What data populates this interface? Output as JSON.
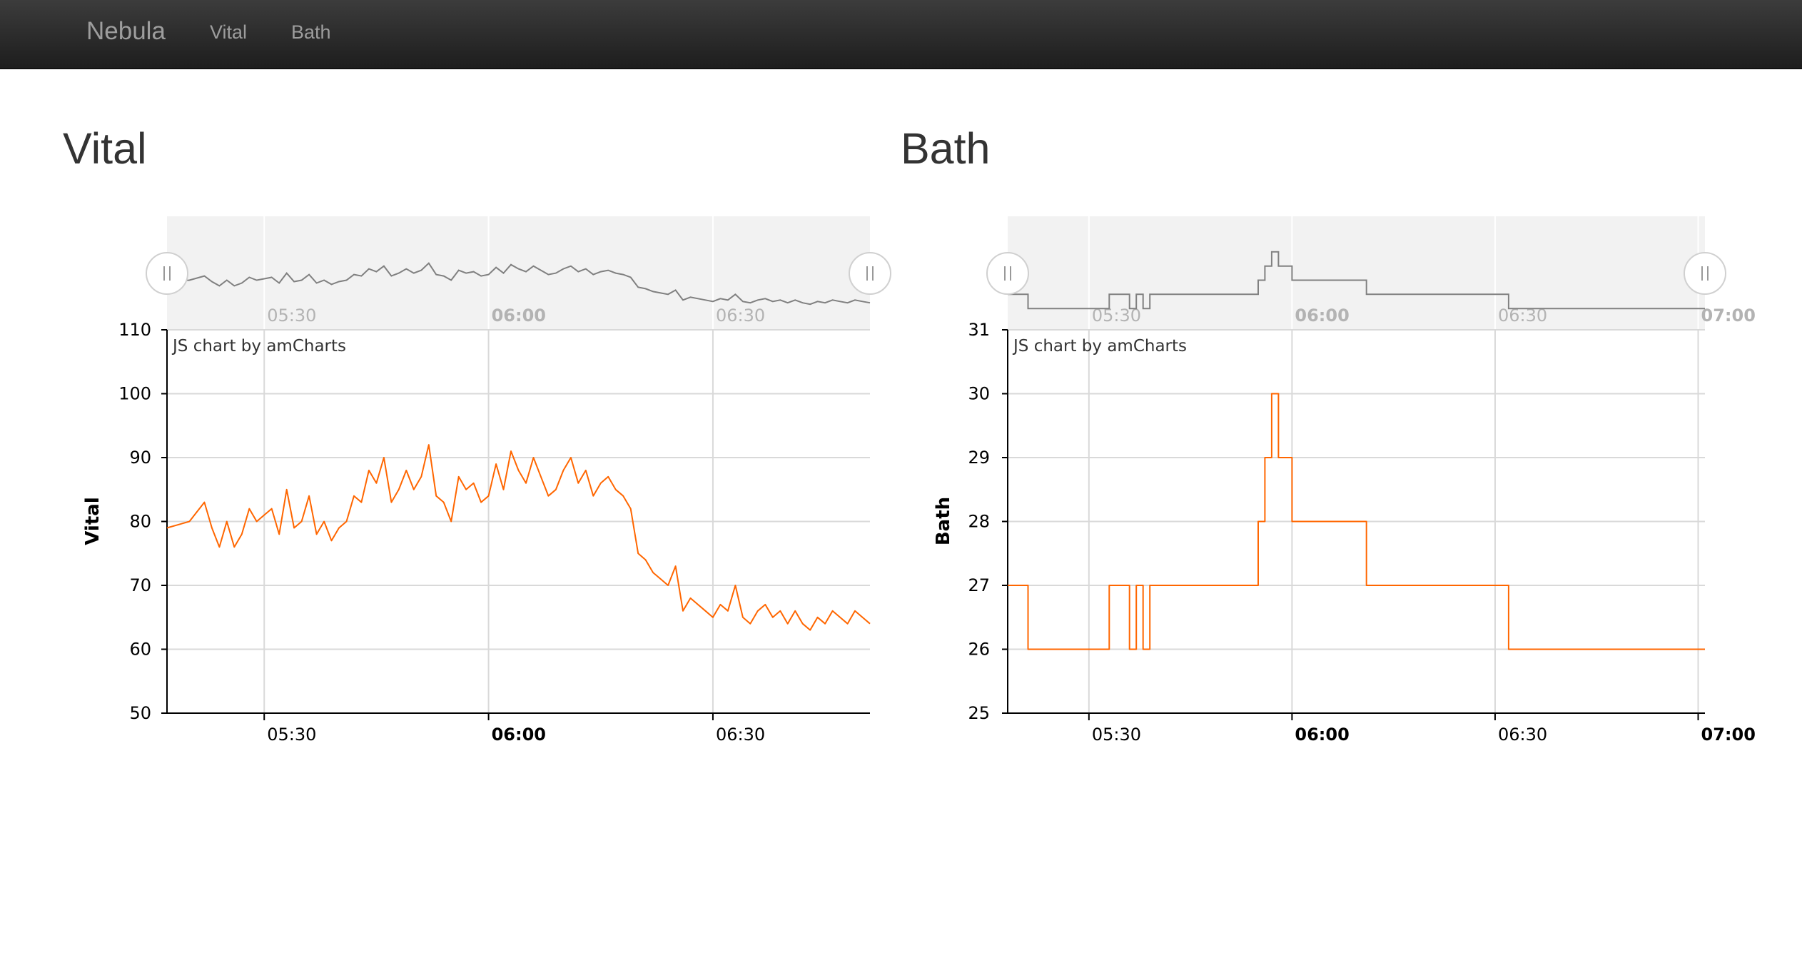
{
  "navbar": {
    "brand": "Nebula",
    "links": [
      "Vital",
      "Bath"
    ]
  },
  "sections": {
    "vital_title": "Vital",
    "bath_title": "Bath"
  },
  "colors": {
    "series": "#ff6600",
    "scrollbar_series": "#808080",
    "scrollbar_bg": "#f2f2f2",
    "grid": "#d9d9d9"
  },
  "chart_data": [
    {
      "type": "line",
      "credit": "JS chart by amCharts",
      "ylabel": "Vital",
      "ylim": [
        50,
        110
      ],
      "yticks": [
        50,
        60,
        70,
        80,
        90,
        100,
        110
      ],
      "xlim": [
        "05:17",
        "06:51"
      ],
      "xticks": [
        {
          "time": "05:30",
          "label": "05:30",
          "bold": false
        },
        {
          "time": "06:00",
          "label": "06:00",
          "bold": true
        },
        {
          "time": "06:30",
          "label": "06:30",
          "bold": false
        }
      ],
      "scrollbar": true,
      "series": [
        {
          "x": [
            "05:17",
            "05:20",
            "05:22",
            "05:23",
            "05:24",
            "05:25",
            "05:26",
            "05:27",
            "05:28",
            "05:29",
            "05:30",
            "05:31",
            "05:32",
            "05:33",
            "05:34",
            "05:35",
            "05:36",
            "05:37",
            "05:38",
            "05:39",
            "05:40",
            "05:41",
            "05:42",
            "05:43",
            "05:44",
            "05:45",
            "05:46",
            "05:47",
            "05:48",
            "05:49",
            "05:50",
            "05:51",
            "05:52",
            "05:53",
            "05:54",
            "05:55",
            "05:56",
            "05:57",
            "05:58",
            "05:59",
            "06:00",
            "06:01",
            "06:02",
            "06:03",
            "06:04",
            "06:05",
            "06:06",
            "06:07",
            "06:08",
            "06:09",
            "06:10",
            "06:11",
            "06:12",
            "06:13",
            "06:14",
            "06:15",
            "06:16",
            "06:17",
            "06:18",
            "06:19",
            "06:20",
            "06:21",
            "06:22",
            "06:23",
            "06:24",
            "06:25",
            "06:26",
            "06:27",
            "06:28",
            "06:29",
            "06:30",
            "06:31",
            "06:32",
            "06:33",
            "06:34",
            "06:35",
            "06:36",
            "06:37",
            "06:38",
            "06:39",
            "06:40",
            "06:41",
            "06:42",
            "06:43",
            "06:44",
            "06:45",
            "06:46",
            "06:47",
            "06:48",
            "06:49",
            "06:50",
            "06:51"
          ],
          "values": [
            79,
            80,
            83,
            79,
            76,
            80,
            76,
            78,
            82,
            80,
            81,
            82,
            78,
            85,
            79,
            80,
            84,
            78,
            80,
            77,
            79,
            80,
            84,
            83,
            88,
            86,
            90,
            83,
            85,
            88,
            85,
            87,
            92,
            84,
            83,
            80,
            87,
            85,
            86,
            83,
            84,
            89,
            85,
            91,
            88,
            86,
            90,
            87,
            84,
            85,
            88,
            90,
            86,
            88,
            84,
            86,
            87,
            85,
            84,
            82,
            75,
            74,
            72,
            71,
            70,
            73,
            66,
            68,
            67,
            66,
            65,
            67,
            66,
            70,
            65,
            64,
            66,
            67,
            65,
            66,
            64,
            66,
            64,
            63,
            65,
            64,
            66,
            65,
            64,
            66,
            65,
            64
          ]
        }
      ]
    },
    {
      "type": "line",
      "credit": "JS chart by amCharts",
      "ylabel": "Bath",
      "ylim": [
        25,
        31
      ],
      "yticks": [
        25,
        26,
        27,
        28,
        29,
        30,
        31
      ],
      "xlim": [
        "05:18",
        "07:01"
      ],
      "xticks": [
        {
          "time": "05:30",
          "label": "05:30",
          "bold": false
        },
        {
          "time": "06:00",
          "label": "06:00",
          "bold": true
        },
        {
          "time": "06:30",
          "label": "06:30",
          "bold": false
        },
        {
          "time": "07:00",
          "label": "07:00",
          "bold": true
        }
      ],
      "scrollbar": true,
      "series": [
        {
          "x": [
            "05:18",
            "05:21",
            "05:21",
            "05:33",
            "05:33",
            "05:36",
            "05:36",
            "05:37",
            "05:37",
            "05:38",
            "05:38",
            "05:39",
            "05:39",
            "05:55",
            "05:55",
            "05:56",
            "05:56",
            "05:57",
            "05:57",
            "05:58",
            "05:58",
            "05:59",
            "05:59",
            "06:00",
            "06:00",
            "06:11",
            "06:11",
            "06:32",
            "06:32",
            "07:01"
          ],
          "values": [
            27,
            27,
            26,
            26,
            27,
            27,
            26,
            26,
            27,
            27,
            26,
            26,
            27,
            27,
            28,
            28,
            29,
            29,
            30,
            30,
            29,
            29,
            29,
            29,
            28,
            28,
            27,
            27,
            26,
            26
          ]
        }
      ]
    }
  ]
}
